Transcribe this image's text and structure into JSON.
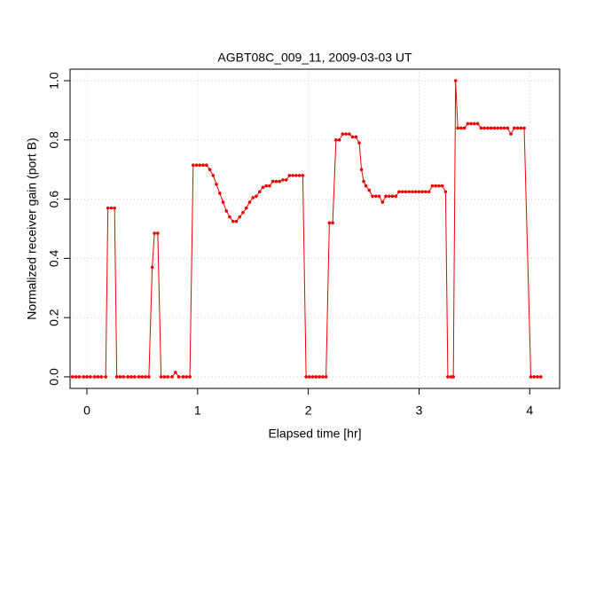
{
  "chart_data": {
    "type": "line",
    "title": "AGBT08C_009_11, 2009-03-03 UT",
    "x_label": "Elapsed time [hr]",
    "y_label": "Normalized receiver gain (port B)",
    "color": "#ee0000",
    "grid": true,
    "xlim": [
      -0.152,
      4.27
    ],
    "ylim": [
      -0.039,
      1.039
    ],
    "xticks": [
      0,
      1,
      2,
      3,
      4
    ],
    "yticks": [
      {
        "value": 0,
        "label": "0.0"
      },
      0.2,
      0.4,
      0.6,
      0.8,
      {
        "value": 1,
        "label": "1.0"
      }
    ],
    "x": [
      -0.13,
      -0.1,
      -0.07,
      -0.03,
      0.0,
      0.03,
      0.07,
      0.1,
      0.13,
      0.17,
      0.19,
      0.22,
      0.25,
      0.27,
      0.3,
      0.33,
      0.37,
      0.4,
      0.43,
      0.47,
      0.5,
      0.53,
      0.56,
      0.59,
      0.61,
      0.64,
      0.67,
      0.7,
      0.73,
      0.77,
      0.8,
      0.83,
      0.87,
      0.9,
      0.93,
      0.96,
      0.99,
      1.02,
      1.05,
      1.08,
      1.11,
      1.14,
      1.17,
      1.2,
      1.23,
      1.26,
      1.29,
      1.32,
      1.35,
      1.38,
      1.41,
      1.44,
      1.47,
      1.5,
      1.53,
      1.56,
      1.59,
      1.62,
      1.65,
      1.68,
      1.71,
      1.74,
      1.77,
      1.8,
      1.83,
      1.86,
      1.89,
      1.92,
      1.95,
      1.98,
      2.01,
      2.04,
      2.07,
      2.1,
      2.13,
      2.16,
      2.19,
      2.22,
      2.25,
      2.28,
      2.31,
      2.34,
      2.37,
      2.4,
      2.43,
      2.46,
      2.48,
      2.5,
      2.52,
      2.55,
      2.58,
      2.61,
      2.64,
      2.67,
      2.7,
      2.73,
      2.76,
      2.79,
      2.82,
      2.85,
      2.88,
      2.91,
      2.94,
      2.97,
      3.0,
      3.03,
      3.06,
      3.09,
      3.12,
      3.15,
      3.18,
      3.21,
      3.24,
      3.26,
      3.29,
      3.31,
      3.33,
      3.35,
      3.38,
      3.41,
      3.44,
      3.47,
      3.5,
      3.53,
      3.56,
      3.59,
      3.62,
      3.65,
      3.68,
      3.71,
      3.74,
      3.77,
      3.8,
      3.83,
      3.86,
      3.89,
      3.92,
      3.95,
      4.01,
      4.04,
      4.07,
      4.1
    ],
    "values": [
      0,
      0,
      0,
      0,
      0,
      0,
      0,
      0,
      0,
      0,
      0.57,
      0.57,
      0.57,
      0,
      0,
      0,
      0,
      0,
      0,
      0,
      0,
      0,
      0,
      0.37,
      0.485,
      0.485,
      0,
      0,
      0,
      0,
      0.015,
      0,
      0,
      0,
      0,
      0.715,
      0.715,
      0.715,
      0.715,
      0.715,
      0.7,
      0.68,
      0.65,
      0.62,
      0.59,
      0.56,
      0.54,
      0.525,
      0.525,
      0.54,
      0.555,
      0.57,
      0.59,
      0.605,
      0.61,
      0.625,
      0.64,
      0.645,
      0.645,
      0.66,
      0.66,
      0.66,
      0.665,
      0.665,
      0.68,
      0.68,
      0.68,
      0.68,
      0.68,
      0,
      0,
      0,
      0,
      0,
      0,
      0,
      0.52,
      0.52,
      0.8,
      0.8,
      0.82,
      0.82,
      0.82,
      0.81,
      0.81,
      0.79,
      0.7,
      0.66,
      0.645,
      0.63,
      0.61,
      0.61,
      0.61,
      0.59,
      0.61,
      0.61,
      0.61,
      0.61,
      0.625,
      0.625,
      0.625,
      0.625,
      0.625,
      0.625,
      0.625,
      0.625,
      0.625,
      0.625,
      0.645,
      0.645,
      0.645,
      0.645,
      0.625,
      0,
      0,
      0,
      1.0,
      0.84,
      0.84,
      0.84,
      0.855,
      0.855,
      0.855,
      0.855,
      0.84,
      0.84,
      0.84,
      0.84,
      0.84,
      0.84,
      0.84,
      0.84,
      0.84,
      0.82,
      0.84,
      0.84,
      0.84,
      0.84,
      0,
      0,
      0,
      0
    ]
  }
}
